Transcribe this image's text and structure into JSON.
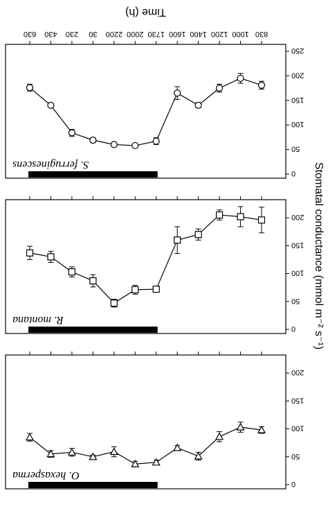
{
  "chart_data": {
    "type": "line",
    "x_title": "Time (h)",
    "y_title": "Stomatal conductance (mmol m⁻² s⁻¹)",
    "time_labels": [
      "830",
      "1000",
      "1200",
      "1400",
      "1600",
      "1730",
      "2000",
      "2200",
      "30",
      "230",
      "430",
      "630"
    ],
    "night_bar": {
      "from": "1730",
      "to": "630"
    },
    "y_ticks": [
      0,
      50,
      100,
      150,
      200,
      250
    ],
    "tick_labels_shown": [
      "0",
      "50",
      "100",
      "150",
      "200",
      "250"
    ],
    "panels": [
      {
        "species": "O. hexasperma",
        "marker": "triangle-down",
        "ylim": [
          0,
          220
        ],
        "y_ticks_shown": [
          0,
          50,
          100,
          150,
          200
        ],
        "values": [
          98,
          103,
          86,
          51,
          66,
          40,
          37,
          59,
          50,
          58,
          55,
          85
        ],
        "errors": [
          6,
          9,
          9,
          7,
          4,
          4,
          5,
          9,
          3,
          7,
          6,
          7
        ]
      },
      {
        "species": "R. montana",
        "marker": "square",
        "ylim": [
          0,
          220
        ],
        "y_ticks_shown": [
          0,
          50,
          100,
          150,
          200
        ],
        "values": [
          196,
          202,
          205,
          170,
          160,
          72,
          71,
          47,
          87,
          103,
          130,
          137
        ],
        "errors": [
          23,
          18,
          9,
          10,
          24,
          0,
          8,
          7,
          11,
          9,
          10,
          12
        ]
      },
      {
        "species": "S. ferruginescens",
        "marker": "circle",
        "ylim": [
          0,
          250
        ],
        "y_ticks_shown": [
          0,
          50,
          100,
          150,
          200,
          250
        ],
        "values": [
          181,
          195,
          175,
          140,
          165,
          67,
          58,
          60,
          69,
          84,
          140,
          176
        ],
        "errors": [
          8,
          10,
          8,
          5,
          13,
          7,
          1,
          2,
          5,
          7,
          4,
          7
        ]
      }
    ]
  }
}
